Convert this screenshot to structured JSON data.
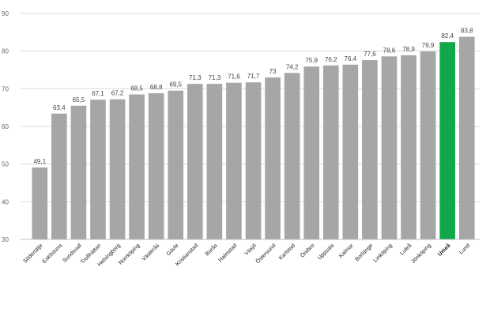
{
  "chart_data": {
    "type": "bar",
    "title": "",
    "xlabel": "",
    "ylabel": "",
    "ylim": [
      30,
      90
    ],
    "yticks": [
      30,
      40,
      50,
      60,
      70,
      80,
      90
    ],
    "grid": true,
    "categories": [
      "Södertälje",
      "Eskilstuna",
      "Sundsvall",
      "Trollhättan",
      "Helsingborg",
      "Norrköping",
      "Västerås",
      "Gävle",
      "Kristianstad",
      "Borås",
      "Halmstad",
      "Växjö",
      "Östersund",
      "Karlstad",
      "Örebro",
      "Uppsala",
      "Kalmar",
      "Borlänge",
      "Linköping",
      "Luleå",
      "Jönköping",
      "Umeå",
      "Lund"
    ],
    "values": [
      49.1,
      63.4,
      65.5,
      67.1,
      67.2,
      68.5,
      68.8,
      69.5,
      71.3,
      71.3,
      71.6,
      71.7,
      73,
      74.2,
      75.9,
      76.2,
      76.4,
      77.6,
      78.6,
      78.9,
      79.9,
      82.4,
      83.8
    ],
    "value_labels": [
      "49,1",
      "63,4",
      "65,5",
      "67,1",
      "67,2",
      "68,5",
      "68,8",
      "69,5",
      "71,3",
      "71,3",
      "71,6",
      "71,7",
      "73",
      "74,2",
      "75,9",
      "76,2",
      "76,4",
      "77,6",
      "78,6",
      "78,9",
      "79,9",
      "82,4",
      "83,8"
    ],
    "highlight_category": "Umeå",
    "colors": {
      "bar": "#a6a6a6",
      "highlight": "#12a84a",
      "grid": "#d9d9d9",
      "axis": "#bfbfbf"
    }
  }
}
